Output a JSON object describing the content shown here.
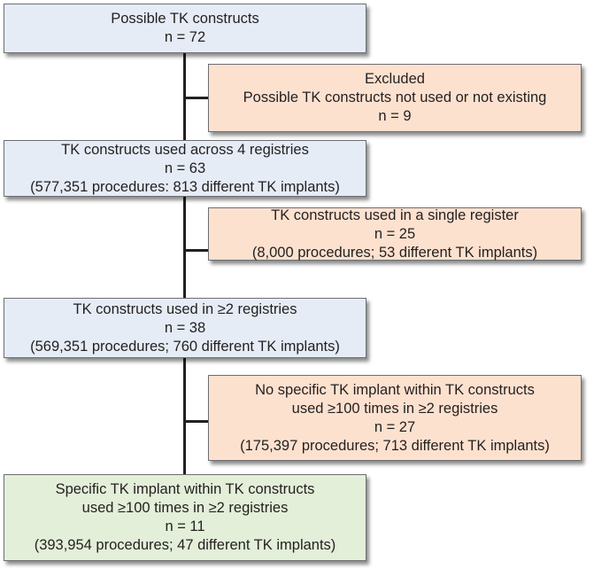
{
  "boxes": [
    {
      "lines": [
        "Possible TK constructs",
        "n = 72"
      ]
    },
    {
      "lines": [
        "Excluded",
        "Possible TK constructs not used or not existing",
        "n = 9"
      ]
    },
    {
      "lines": [
        "TK constructs used across 4 registries",
        "n = 63",
        "(577,351 procedures: 813 different TK implants)"
      ]
    },
    {
      "lines": [
        "TK constructs used in a single register",
        "n = 25",
        "(8,000 procedures; 53 different TK implants)"
      ]
    },
    {
      "lines": [
        "TK constructs used in ≥2 registries",
        "n = 38",
        "(569,351 procedures; 760 different TK implants)"
      ]
    },
    {
      "lines": [
        "No specific TK implant within TK constructs",
        "used ≥100 times in ≥2 registries",
        "n = 27",
        "(175,397 procedures; 713 different TK implants)"
      ]
    },
    {
      "lines": [
        "Specific TK implant within TK constructs",
        "used ≥100 times in ≥2 registries",
        "n = 11",
        "(393,954 procedures; 47 different TK implants)"
      ]
    }
  ],
  "colors": {
    "included": "#e5ecf6",
    "excluded": "#fde1cf",
    "final": "#e3efd8"
  }
}
